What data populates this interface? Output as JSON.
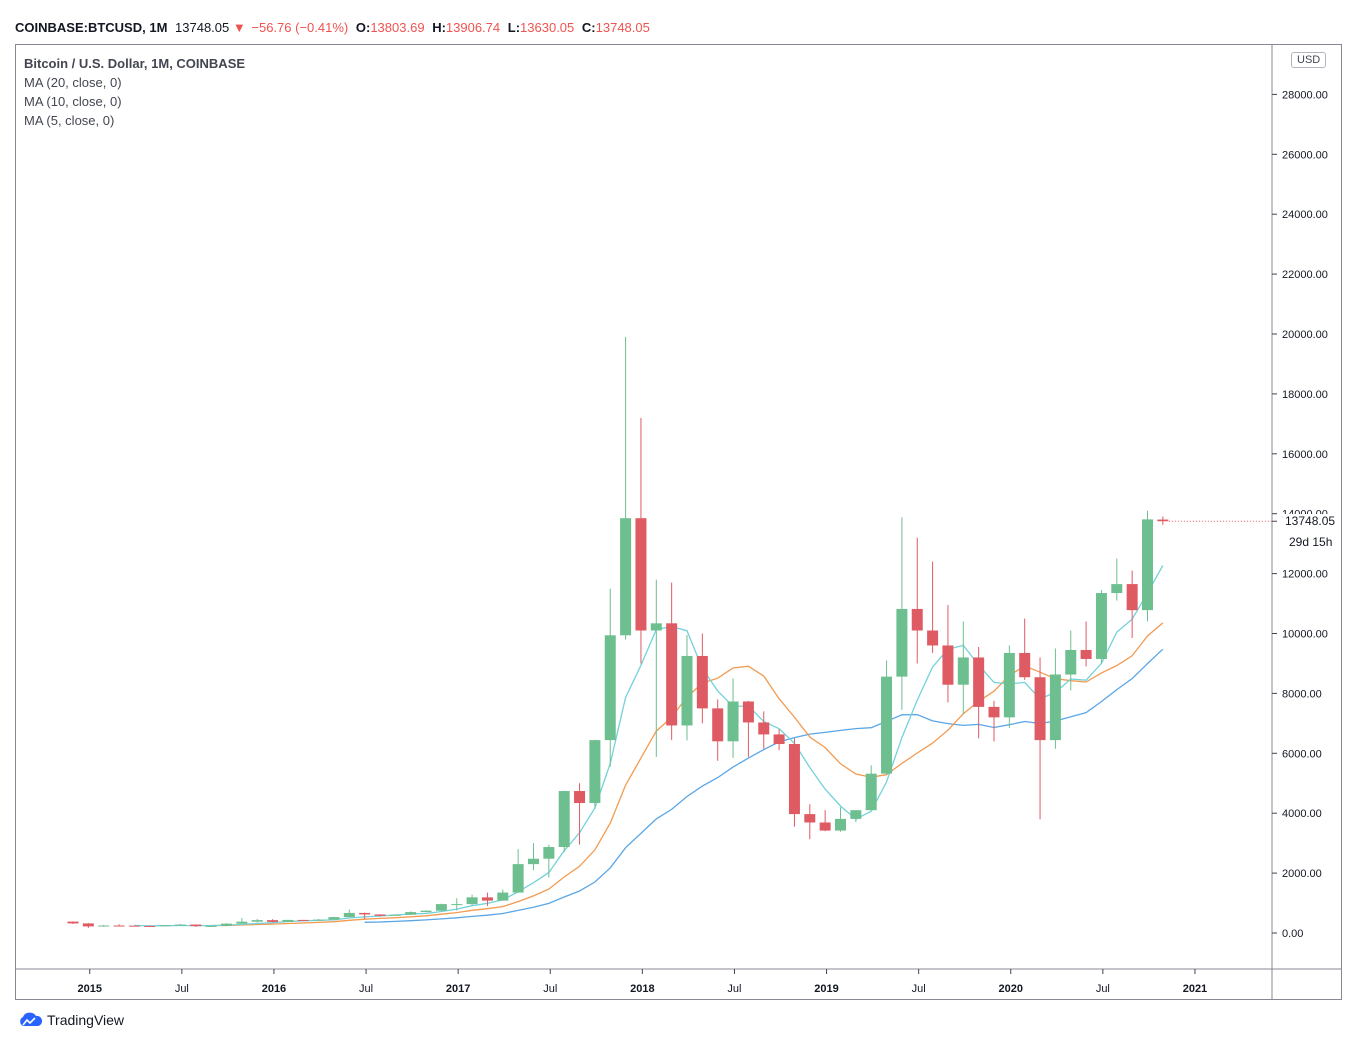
{
  "header": {
    "symbol": "COINBASE:BTCUSD, 1M",
    "price": "13748.05",
    "change": "−56.76 (−0.41%)",
    "open_label": "O:",
    "open": "13803.69",
    "high_label": "H:",
    "high": "13906.74",
    "low_label": "L:",
    "low": "13630.05",
    "close_label": "C:",
    "close": "13748.05"
  },
  "legend": {
    "title": "Bitcoin / U.S. Dollar, 1M, COINBASE",
    "ma20": "MA (20, close, 0)",
    "ma10": "MA (10, close, 0)",
    "ma5": "MA (5, close, 0)"
  },
  "currency_button": "USD",
  "last_price_label": "13748.05",
  "countdown": "29d 15h",
  "brand": "TradingView",
  "colors": {
    "up": "#6ebf8f",
    "down": "#df5b63",
    "ma20": "#5aa6e6",
    "ma10": "#f29a50",
    "ma5": "#72d2d9",
    "accent": "#2962ff"
  },
  "chart_data": {
    "type": "candlestick",
    "x_tick_labels": [
      "2015",
      "Jul",
      "2016",
      "Jul",
      "2017",
      "Jul",
      "2018",
      "Jul",
      "2019",
      "Jul",
      "2020",
      "Jul",
      "2021"
    ],
    "y_tick_labels": [
      "0.00",
      "2000.00",
      "4000.00",
      "6000.00",
      "8000.00",
      "10000.00",
      "12000.00",
      "14000.00",
      "16000.00",
      "18000.00",
      "20000.00",
      "22000.00",
      "24000.00",
      "26000.00",
      "28000.00"
    ],
    "ylim": [
      -1200,
      29400
    ],
    "months": [
      "2014-12",
      "2015-01",
      "2015-02",
      "2015-03",
      "2015-04",
      "2015-05",
      "2015-06",
      "2015-07",
      "2015-08",
      "2015-09",
      "2015-10",
      "2015-11",
      "2015-12",
      "2016-01",
      "2016-02",
      "2016-03",
      "2016-04",
      "2016-05",
      "2016-06",
      "2016-07",
      "2016-08",
      "2016-09",
      "2016-10",
      "2016-11",
      "2016-12",
      "2017-01",
      "2017-02",
      "2017-03",
      "2017-04",
      "2017-05",
      "2017-06",
      "2017-07",
      "2017-08",
      "2017-09",
      "2017-10",
      "2017-11",
      "2017-12",
      "2018-01",
      "2018-02",
      "2018-03",
      "2018-04",
      "2018-05",
      "2018-06",
      "2018-07",
      "2018-08",
      "2018-09",
      "2018-10",
      "2018-11",
      "2018-12",
      "2019-01",
      "2019-02",
      "2019-03",
      "2019-04",
      "2019-05",
      "2019-06",
      "2019-07",
      "2019-08",
      "2019-09",
      "2019-10",
      "2019-11",
      "2019-12",
      "2020-01",
      "2020-02",
      "2020-03",
      "2020-04",
      "2020-05",
      "2020-06",
      "2020-07",
      "2020-08",
      "2020-09",
      "2020-10",
      "2020-11"
    ],
    "ohlc": [
      [
        380,
        390,
        300,
        320
      ],
      [
        320,
        330,
        170,
        220
      ],
      [
        220,
        270,
        210,
        250
      ],
      [
        250,
        290,
        230,
        245
      ],
      [
        245,
        250,
        220,
        235
      ],
      [
        235,
        250,
        225,
        230
      ],
      [
        230,
        270,
        225,
        262
      ],
      [
        262,
        300,
        262,
        283
      ],
      [
        283,
        285,
        200,
        229
      ],
      [
        229,
        245,
        225,
        236
      ],
      [
        236,
        330,
        236,
        312
      ],
      [
        312,
        500,
        310,
        378
      ],
      [
        378,
        470,
        350,
        430
      ],
      [
        430,
        460,
        360,
        370
      ],
      [
        370,
        440,
        370,
        437
      ],
      [
        437,
        440,
        400,
        416
      ],
      [
        416,
        470,
        416,
        448
      ],
      [
        448,
        540,
        440,
        531
      ],
      [
        531,
        780,
        530,
        670
      ],
      [
        670,
        680,
        470,
        620
      ],
      [
        620,
        620,
        550,
        575
      ],
      [
        575,
        615,
        570,
        610
      ],
      [
        610,
        720,
        605,
        698
      ],
      [
        698,
        760,
        690,
        745
      ],
      [
        745,
        980,
        740,
        965
      ],
      [
        965,
        1160,
        750,
        965
      ],
      [
        965,
        1280,
        920,
        1190
      ],
      [
        1190,
        1350,
        900,
        1080
      ],
      [
        1080,
        1450,
        1080,
        1350
      ],
      [
        1350,
        2800,
        1350,
        2300
      ],
      [
        2300,
        3000,
        2100,
        2480
      ],
      [
        2480,
        2950,
        1850,
        2870
      ],
      [
        2870,
        4750,
        2700,
        4740
      ],
      [
        4740,
        5000,
        2950,
        4340
      ],
      [
        4340,
        6450,
        4150,
        6440
      ],
      [
        6440,
        11500,
        5550,
        9940
      ],
      [
        9940,
        19900,
        9800,
        13850
      ],
      [
        13850,
        17200,
        9000,
        10100
      ],
      [
        10100,
        11800,
        5880,
        10340
      ],
      [
        10340,
        11700,
        6450,
        6930
      ],
      [
        6930,
        9950,
        6430,
        9250
      ],
      [
        9250,
        10000,
        7000,
        7500
      ],
      [
        7500,
        7800,
        5750,
        6400
      ],
      [
        6400,
        8500,
        5850,
        7730
      ],
      [
        7730,
        7750,
        5880,
        7030
      ],
      [
        7030,
        7400,
        6150,
        6630
      ],
      [
        6630,
        6800,
        6100,
        6310
      ],
      [
        6310,
        6500,
        3550,
        3970
      ],
      [
        3970,
        4300,
        3130,
        3690
      ],
      [
        3690,
        4100,
        3400,
        3420
      ],
      [
        3420,
        4200,
        3380,
        3810
      ],
      [
        3810,
        4100,
        3700,
        4100
      ],
      [
        4100,
        5600,
        4100,
        5320
      ],
      [
        5320,
        9100,
        5300,
        8560
      ],
      [
        8560,
        13880,
        7450,
        10820
      ],
      [
        10820,
        13200,
        9000,
        10100
      ],
      [
        10100,
        12400,
        9350,
        9600
      ],
      [
        9600,
        10950,
        7700,
        8290
      ],
      [
        8290,
        10400,
        7300,
        9200
      ],
      [
        9200,
        9550,
        6500,
        7550
      ],
      [
        7550,
        7750,
        6400,
        7200
      ],
      [
        7200,
        9600,
        6850,
        9350
      ],
      [
        9350,
        10500,
        8450,
        8540
      ],
      [
        8540,
        9200,
        3800,
        6440
      ],
      [
        6440,
        9500,
        6150,
        8630
      ],
      [
        8630,
        10100,
        8100,
        9450
      ],
      [
        9450,
        10400,
        8900,
        9150
      ],
      [
        9150,
        11450,
        9000,
        11350
      ],
      [
        11350,
        12500,
        11100,
        11650
      ],
      [
        11650,
        12100,
        9850,
        10780
      ],
      [
        10780,
        14100,
        10400,
        13810
      ],
      [
        13803.69,
        13906.74,
        13630.05,
        13748.05
      ]
    ]
  }
}
